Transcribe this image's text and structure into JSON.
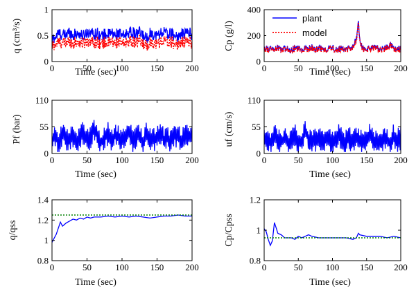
{
  "colors": {
    "plant": "#0000ff",
    "model": "#ff0000",
    "reference": "#008000",
    "axes": "#000000",
    "background": "#ffffff"
  },
  "chart_data": [
    {
      "id": "q",
      "type": "line",
      "xlabel": "Time (sec)",
      "ylabel": "q (cm³/s)",
      "xlim": [
        0,
        200
      ],
      "ylim": [
        0,
        1
      ],
      "xticks": [
        "0",
        "50",
        "100",
        "150",
        "200"
      ],
      "yticks": [
        "0",
        "0.5",
        "1"
      ],
      "xtick_values": [
        0,
        50,
        100,
        150,
        200
      ],
      "ytick_values": [
        0,
        0.5,
        1
      ],
      "grid": false,
      "series": [
        {
          "name": "plant",
          "style": "solid",
          "color": "#0000ff",
          "kind": "noisy",
          "x": [
            0,
            5,
            10,
            15,
            20,
            25,
            30,
            35,
            40,
            45,
            50,
            55,
            60,
            65,
            70,
            75,
            80,
            85,
            90,
            95,
            100,
            105,
            110,
            115,
            120,
            125,
            130,
            135,
            140,
            145,
            150,
            155,
            160,
            165,
            170,
            175,
            180,
            185,
            190,
            195,
            200
          ],
          "y": [
            0.42,
            0.48,
            0.55,
            0.5,
            0.52,
            0.58,
            0.5,
            0.55,
            0.52,
            0.5,
            0.56,
            0.58,
            0.52,
            0.55,
            0.48,
            0.53,
            0.52,
            0.55,
            0.5,
            0.56,
            0.48,
            0.52,
            0.58,
            0.55,
            0.52,
            0.56,
            0.5,
            0.45,
            0.55,
            0.52,
            0.5,
            0.55,
            0.58,
            0.52,
            0.55,
            0.5,
            0.48,
            0.52,
            0.55,
            0.58,
            0.5
          ]
        },
        {
          "name": "model",
          "style": "dotted",
          "color": "#ff0000",
          "kind": "noisy",
          "x": [
            0,
            5,
            10,
            15,
            20,
            25,
            30,
            35,
            40,
            45,
            50,
            55,
            60,
            65,
            70,
            75,
            80,
            85,
            90,
            95,
            100,
            105,
            110,
            115,
            120,
            125,
            130,
            135,
            140,
            145,
            150,
            155,
            160,
            165,
            170,
            175,
            180,
            185,
            190,
            195,
            200
          ],
          "y": [
            0.3,
            0.33,
            0.38,
            0.35,
            0.36,
            0.4,
            0.34,
            0.38,
            0.36,
            0.35,
            0.39,
            0.4,
            0.36,
            0.38,
            0.33,
            0.37,
            0.36,
            0.38,
            0.34,
            0.39,
            0.33,
            0.36,
            0.4,
            0.38,
            0.36,
            0.39,
            0.34,
            0.3,
            0.38,
            0.36,
            0.34,
            0.38,
            0.4,
            0.36,
            0.38,
            0.34,
            0.33,
            0.36,
            0.38,
            0.4,
            0.34
          ]
        }
      ]
    },
    {
      "id": "cp",
      "type": "line",
      "xlabel": "Time (sec)",
      "ylabel": "Cp (g/l)",
      "xlim": [
        0,
        200
      ],
      "ylim": [
        0,
        400
      ],
      "xticks": [
        "0",
        "50",
        "100",
        "150",
        "200"
      ],
      "yticks": [
        "0",
        "200",
        "400"
      ],
      "xtick_values": [
        0,
        50,
        100,
        150,
        200
      ],
      "ytick_values": [
        0,
        200,
        400
      ],
      "grid": false,
      "legend": {
        "placement": "top-right",
        "entries": [
          "plant",
          "model"
        ]
      },
      "series": [
        {
          "name": "plant",
          "style": "solid",
          "color": "#0000ff",
          "kind": "noisy",
          "x": [
            0,
            5,
            10,
            15,
            20,
            25,
            30,
            35,
            40,
            45,
            50,
            55,
            60,
            65,
            70,
            75,
            80,
            85,
            90,
            95,
            100,
            105,
            110,
            115,
            120,
            125,
            130,
            135,
            138,
            141,
            145,
            150,
            155,
            160,
            165,
            170,
            175,
            180,
            185,
            190,
            195,
            200
          ],
          "y": [
            95,
            100,
            105,
            90,
            110,
            95,
            100,
            105,
            90,
            110,
            100,
            95,
            105,
            100,
            110,
            95,
            100,
            105,
            95,
            100,
            110,
            95,
            100,
            105,
            95,
            100,
            110,
            180,
            295,
            130,
            100,
            95,
            105,
            100,
            110,
            95,
            100,
            105,
            130,
            100,
            95,
            100
          ]
        },
        {
          "name": "model",
          "style": "dotted",
          "color": "#ff0000",
          "kind": "noisy",
          "x": [
            0,
            5,
            10,
            15,
            20,
            25,
            30,
            35,
            40,
            45,
            50,
            55,
            60,
            65,
            70,
            75,
            80,
            85,
            90,
            95,
            100,
            105,
            110,
            115,
            120,
            125,
            130,
            135,
            138,
            141,
            145,
            150,
            155,
            160,
            165,
            170,
            175,
            180,
            185,
            190,
            195,
            200
          ],
          "y": [
            90,
            95,
            100,
            85,
            105,
            90,
            95,
            100,
            85,
            105,
            95,
            90,
            100,
            95,
            105,
            90,
            95,
            100,
            90,
            95,
            105,
            90,
            95,
            100,
            90,
            95,
            105,
            170,
            285,
            125,
            95,
            90,
            100,
            95,
            105,
            90,
            95,
            100,
            125,
            95,
            90,
            95
          ]
        }
      ]
    },
    {
      "id": "pf",
      "type": "line",
      "xlabel": "Time (sec)",
      "ylabel": "Pf (bar)",
      "xlim": [
        0,
        200
      ],
      "ylim": [
        0,
        110
      ],
      "xticks": [
        "0",
        "50",
        "100",
        "150",
        "200"
      ],
      "yticks": [
        "0",
        "55",
        "110"
      ],
      "xtick_values": [
        0,
        50,
        100,
        150,
        200
      ],
      "ytick_values": [
        0,
        55,
        110
      ],
      "grid": false,
      "series": [
        {
          "name": "plant",
          "style": "solid",
          "color": "#0000ff",
          "kind": "switching",
          "x": [
            0,
            5,
            10,
            15,
            20,
            25,
            30,
            35,
            40,
            45,
            50,
            55,
            60,
            65,
            70,
            75,
            80,
            85,
            90,
            95,
            100,
            105,
            110,
            115,
            120,
            125,
            130,
            135,
            140,
            145,
            150,
            155,
            160,
            165,
            170,
            175,
            180,
            185,
            190,
            195,
            200
          ],
          "y": [
            35,
            45,
            30,
            50,
            40,
            35,
            45,
            30,
            40,
            50,
            35,
            40,
            60,
            45,
            30,
            40,
            50,
            35,
            45,
            40,
            30,
            45,
            50,
            35,
            40,
            45,
            30,
            50,
            40,
            35,
            45,
            50,
            35,
            40,
            30,
            45,
            40,
            35,
            50,
            40,
            45
          ]
        }
      ]
    },
    {
      "id": "uf",
      "type": "line",
      "xlabel": "Time (sec)",
      "ylabel": "uf (cm/s)",
      "xlim": [
        0,
        200
      ],
      "ylim": [
        0,
        110
      ],
      "xticks": [
        "0",
        "50",
        "100",
        "150",
        "200"
      ],
      "yticks": [
        "0",
        "55",
        "110"
      ],
      "xtick_values": [
        0,
        50,
        100,
        150,
        200
      ],
      "ytick_values": [
        0,
        55,
        110
      ],
      "grid": false,
      "series": [
        {
          "name": "plant",
          "style": "solid",
          "color": "#0000ff",
          "kind": "switching",
          "x": [
            0,
            5,
            10,
            15,
            20,
            25,
            30,
            35,
            40,
            45,
            50,
            55,
            60,
            65,
            70,
            75,
            80,
            85,
            90,
            95,
            100,
            105,
            110,
            115,
            120,
            125,
            130,
            135,
            140,
            145,
            150,
            155,
            160,
            165,
            170,
            175,
            180,
            185,
            190,
            195,
            200
          ],
          "y": [
            35,
            40,
            30,
            45,
            35,
            30,
            40,
            30,
            35,
            45,
            30,
            35,
            55,
            40,
            30,
            35,
            45,
            30,
            40,
            35,
            30,
            40,
            45,
            30,
            35,
            40,
            30,
            45,
            35,
            30,
            40,
            45,
            30,
            35,
            30,
            40,
            35,
            30,
            45,
            35,
            40
          ]
        }
      ]
    },
    {
      "id": "q_ratio",
      "type": "line",
      "xlabel": "Time (sec)",
      "ylabel": "q/qss",
      "xlim": [
        0,
        200
      ],
      "ylim": [
        0.8,
        1.4
      ],
      "xticks": [
        "0",
        "50",
        "100",
        "150",
        "200"
      ],
      "yticks": [
        "0.8",
        "1",
        "1.2",
        "1.4"
      ],
      "xtick_values": [
        0,
        50,
        100,
        150,
        200
      ],
      "ytick_values": [
        0.8,
        1.0,
        1.2,
        1.4
      ],
      "grid": false,
      "series": [
        {
          "name": "plant",
          "style": "solid",
          "color": "#0000ff",
          "kind": "smooth",
          "x": [
            0,
            3,
            6,
            9,
            12,
            15,
            20,
            25,
            30,
            35,
            40,
            45,
            50,
            55,
            60,
            70,
            80,
            90,
            100,
            110,
            120,
            130,
            140,
            150,
            160,
            170,
            180,
            190,
            200
          ],
          "y": [
            0.98,
            1.02,
            1.06,
            1.12,
            1.18,
            1.14,
            1.17,
            1.19,
            1.21,
            1.2,
            1.22,
            1.21,
            1.23,
            1.22,
            1.23,
            1.23,
            1.24,
            1.23,
            1.24,
            1.23,
            1.24,
            1.23,
            1.22,
            1.23,
            1.24,
            1.24,
            1.25,
            1.24,
            1.24
          ]
        },
        {
          "name": "",
          "style": "dotted",
          "color": "#008000",
          "kind": "reference",
          "x": [
            0,
            200
          ],
          "y": [
            1.25,
            1.25
          ]
        }
      ]
    },
    {
      "id": "cp_ratio",
      "type": "line",
      "xlabel": "Time (sec)",
      "ylabel": "Cp/Cpss",
      "xlim": [
        0,
        200
      ],
      "ylim": [
        0.8,
        1.2
      ],
      "xticks": [
        "0",
        "50",
        "100",
        "150",
        "200"
      ],
      "yticks": [
        "0.8",
        "1",
        "1.2"
      ],
      "xtick_values": [
        0,
        50,
        100,
        150,
        200
      ],
      "ytick_values": [
        0.8,
        1.0,
        1.2
      ],
      "grid": false,
      "series": [
        {
          "name": "plant",
          "style": "solid",
          "color": "#0000ff",
          "kind": "smooth",
          "x": [
            0,
            3,
            6,
            9,
            12,
            15,
            18,
            20,
            25,
            30,
            35,
            40,
            45,
            50,
            55,
            60,
            65,
            70,
            80,
            90,
            100,
            110,
            120,
            130,
            135,
            138,
            140,
            150,
            160,
            170,
            180,
            190,
            200
          ],
          "y": [
            1.01,
            0.99,
            0.94,
            0.9,
            0.93,
            1.05,
            1.01,
            0.98,
            0.97,
            0.95,
            0.95,
            0.95,
            0.94,
            0.96,
            0.95,
            0.96,
            0.97,
            0.96,
            0.95,
            0.95,
            0.95,
            0.95,
            0.95,
            0.94,
            0.95,
            0.98,
            0.97,
            0.96,
            0.96,
            0.96,
            0.95,
            0.96,
            0.95
          ]
        },
        {
          "name": "",
          "style": "dotted",
          "color": "#008000",
          "kind": "reference",
          "x": [
            0,
            200
          ],
          "y": [
            0.95,
            0.95
          ]
        }
      ]
    }
  ]
}
